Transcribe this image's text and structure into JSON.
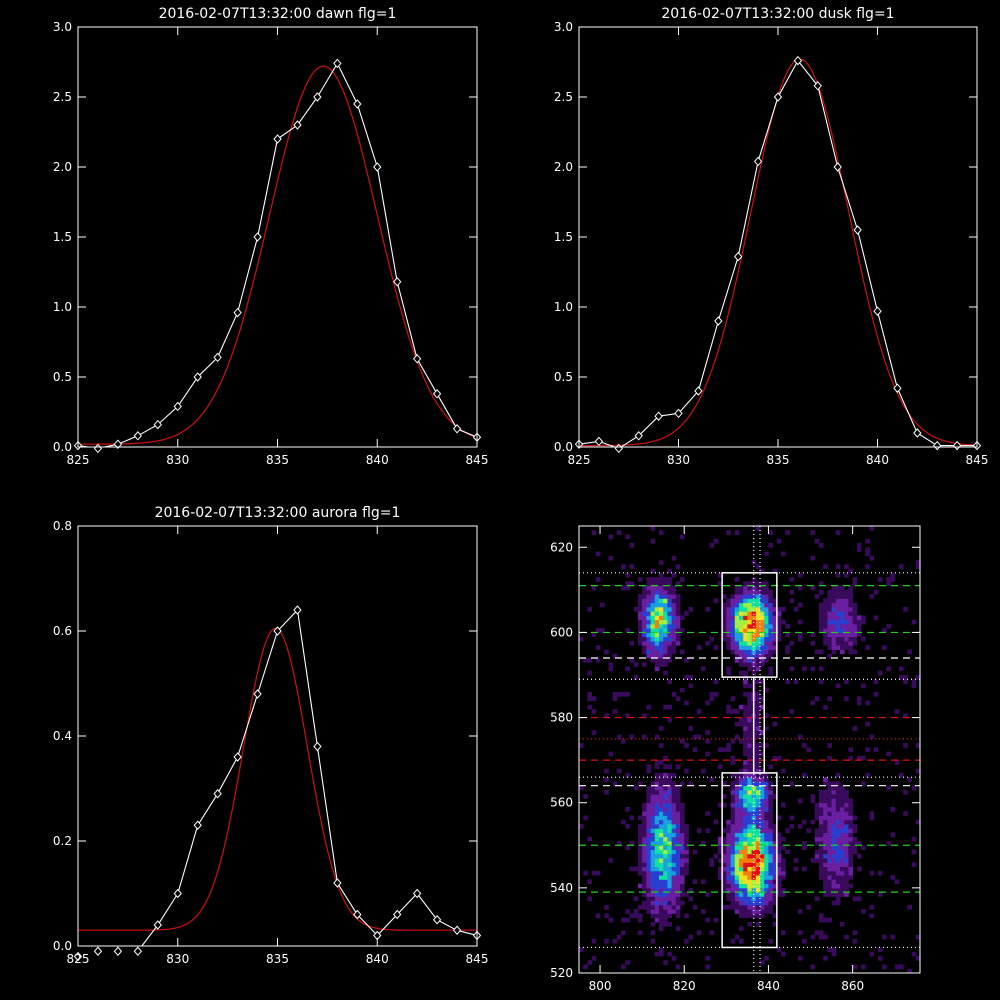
{
  "chart_data": [
    {
      "type": "line",
      "title": "2016-02-07T13:32:00 dawn flg=1",
      "xlim": [
        825,
        845
      ],
      "ylim": [
        0,
        3.0
      ],
      "xticks": [
        "825",
        "830",
        "835",
        "840",
        "845"
      ],
      "yticks": [
        "0.0",
        "0.5",
        "1.0",
        "1.5",
        "2.0",
        "2.5",
        "3.0"
      ],
      "series": [
        {
          "style": "data-diamonds",
          "color": "#ffffff",
          "x": [
            825,
            826,
            827,
            828,
            829,
            830,
            831,
            832,
            833,
            834,
            835,
            836,
            837,
            838,
            839,
            840,
            841,
            842,
            843,
            844,
            845
          ],
          "y": [
            0.01,
            -0.01,
            0.02,
            0.08,
            0.16,
            0.29,
            0.5,
            0.64,
            0.96,
            1.5,
            2.2,
            2.3,
            2.5,
            2.74,
            2.45,
            2.0,
            1.18,
            0.63,
            0.38,
            0.13,
            0.07
          ]
        },
        {
          "style": "fit",
          "color": "#d01010",
          "gauss": {
            "amp": 2.7,
            "center": 837.3,
            "sigma": 2.7,
            "base": 0.02
          }
        }
      ]
    },
    {
      "type": "line",
      "title": "2016-02-07T13:32:00 dusk flg=1",
      "xlim": [
        825,
        845
      ],
      "ylim": [
        0,
        3.0
      ],
      "xticks": [
        "825",
        "830",
        "835",
        "840",
        "845"
      ],
      "yticks": [
        "0.0",
        "0.5",
        "1.0",
        "1.5",
        "2.0",
        "2.5",
        "3.0"
      ],
      "series": [
        {
          "style": "data-diamonds",
          "color": "#ffffff",
          "x": [
            825,
            826,
            827,
            828,
            829,
            830,
            831,
            832,
            833,
            834,
            835,
            836,
            837,
            838,
            839,
            840,
            841,
            842,
            843,
            844,
            845
          ],
          "y": [
            0.02,
            0.04,
            -0.01,
            0.08,
            0.22,
            0.24,
            0.4,
            0.9,
            1.36,
            2.04,
            2.5,
            2.76,
            2.58,
            2.0,
            1.55,
            0.97,
            0.42,
            0.1,
            0.01,
            0.01,
            0.01
          ],
          "note_unused": null
        },
        {
          "style": "fit",
          "color": "#d01010",
          "gauss": {
            "amp": 2.76,
            "center": 836.1,
            "sigma": 2.45,
            "base": 0.01
          }
        }
      ]
    },
    {
      "type": "line",
      "title": "2016-02-07T13:32:00 aurora flg=1",
      "xlim": [
        825,
        845
      ],
      "ylim": [
        0,
        0.8
      ],
      "xticks": [
        "825",
        "830",
        "835",
        "840",
        "845"
      ],
      "yticks": [
        "0.0",
        "0.2",
        "0.4",
        "0.6",
        "0.8"
      ],
      "series": [
        {
          "style": "data-diamonds",
          "color": "#ffffff",
          "x": [
            825,
            826,
            827,
            828,
            829,
            830,
            831,
            832,
            833,
            834,
            835,
            836,
            837,
            838,
            839,
            840,
            841,
            842,
            843,
            844,
            845
          ],
          "y": [
            -0.02,
            -0.01,
            -0.01,
            -0.01,
            0.04,
            0.1,
            0.23,
            0.29,
            0.36,
            0.48,
            0.6,
            0.64,
            0.38,
            0.12,
            0.06,
            0.02,
            0.06,
            0.1,
            0.05,
            0.03,
            0.02
          ]
        },
        {
          "style": "fit",
          "color": "#d01010",
          "gauss": {
            "amp": 0.575,
            "center": 834.9,
            "sigma": 1.6,
            "base": 0.03
          }
        }
      ]
    },
    {
      "type": "heatmap",
      "title": "",
      "xlim": [
        795,
        876
      ],
      "ylim": [
        520,
        625
      ],
      "xticks": [
        "800",
        "820",
        "840",
        "860"
      ],
      "yticks": [
        "520",
        "540",
        "560",
        "580",
        "600",
        "620"
      ],
      "colormap": [
        "#000000",
        "#3a0a5c",
        "#6a1fa0",
        "#2a3fd0",
        "#1a9fe0",
        "#10e0a0",
        "#a0f040",
        "#f0e020",
        "#f08010",
        "#e01010"
      ],
      "blobs": [
        {
          "x": 836,
          "y": 602,
          "sx": 3.2,
          "sy": 4.5,
          "amp": 1.0
        },
        {
          "x": 836,
          "y": 546,
          "sx": 3.4,
          "sy": 6.0,
          "amp": 1.0
        },
        {
          "x": 836,
          "y": 562,
          "sx": 2.5,
          "sy": 3.0,
          "amp": 0.6
        },
        {
          "x": 836,
          "y": 578,
          "sx": 2.0,
          "sy": 8.0,
          "amp": 0.15
        },
        {
          "x": 814,
          "y": 603,
          "sx": 2.5,
          "sy": 5.0,
          "amp": 0.72
        },
        {
          "x": 815,
          "y": 549,
          "sx": 3.0,
          "sy": 9.0,
          "amp": 0.6
        },
        {
          "x": 857,
          "y": 603,
          "sx": 3.0,
          "sy": 5.0,
          "amp": 0.3
        },
        {
          "x": 856,
          "y": 551,
          "sx": 3.0,
          "sy": 9.0,
          "amp": 0.28
        }
      ],
      "hlines": [
        {
          "y": 614,
          "color": "#ffffff",
          "dash": "dotted"
        },
        {
          "y": 611,
          "color": "#20d020",
          "dash": "dashed"
        },
        {
          "y": 600,
          "color": "#20d020",
          "dash": "dashed"
        },
        {
          "y": 594,
          "color": "#ffffff",
          "dash": "dashed"
        },
        {
          "y": 589,
          "color": "#ffffff",
          "dash": "dotted"
        },
        {
          "y": 580,
          "color": "#e01010",
          "dash": "dashed"
        },
        {
          "y": 575,
          "color": "#e01010",
          "dash": "dotted"
        },
        {
          "y": 570,
          "color": "#e01010",
          "dash": "dashed"
        },
        {
          "y": 566,
          "color": "#ffffff",
          "dash": "dotted"
        },
        {
          "y": 564,
          "color": "#ffffff",
          "dash": "dashed"
        },
        {
          "y": 550,
          "color": "#20d020",
          "dash": "dashed"
        },
        {
          "y": 539,
          "color": "#20d020",
          "dash": "dashed"
        },
        {
          "y": 526,
          "color": "#ffffff",
          "dash": "dotted"
        }
      ],
      "vlines": [
        {
          "x": 836.5,
          "color": "#ffffff",
          "dash": "dotted"
        },
        {
          "x": 838,
          "color": "#ffffff",
          "dash": "dotted"
        }
      ],
      "boxes": [
        {
          "x0": 829,
          "x1": 842,
          "y0": 589.5,
          "y1": 614
        },
        {
          "x0": 829,
          "x1": 842,
          "y0": 526,
          "y1": 567
        },
        {
          "x0": 836.5,
          "x1": 839,
          "y0": 567,
          "y1": 589.5
        }
      ]
    }
  ]
}
